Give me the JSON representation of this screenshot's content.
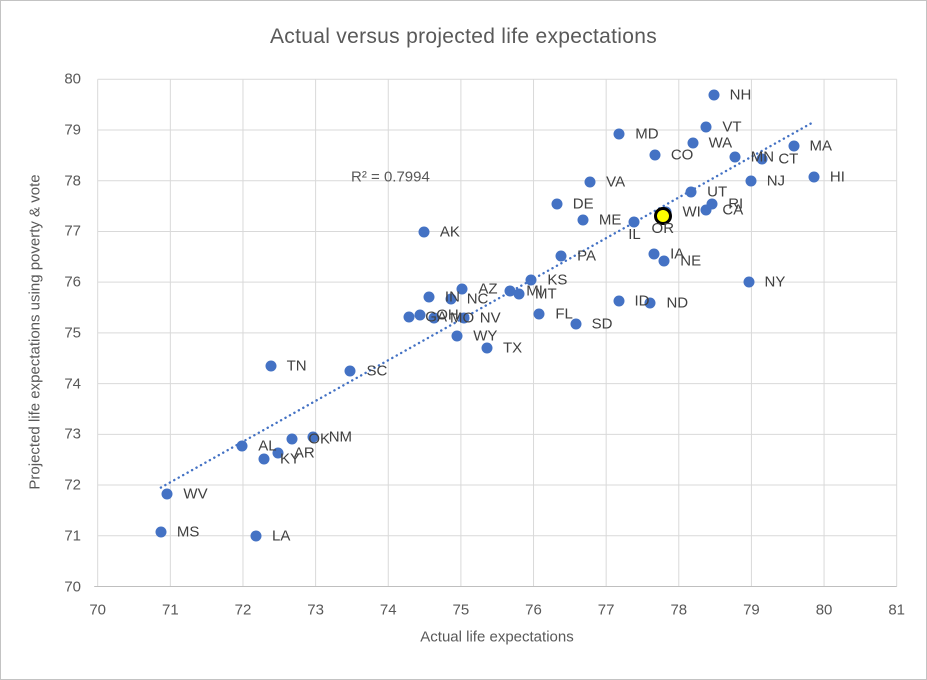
{
  "chart_data": {
    "type": "scatter",
    "title": "Actual versus projected life expectations",
    "xlabel": "Actual life expectations",
    "ylabel": "Projected life expectations using poverty & vote",
    "xlim": [
      70,
      81
    ],
    "ylim": [
      70,
      80
    ],
    "x_ticks": [
      70,
      71,
      72,
      73,
      74,
      75,
      76,
      77,
      78,
      79,
      80,
      81
    ],
    "y_ticks": [
      70,
      71,
      72,
      73,
      74,
      75,
      76,
      77,
      78,
      79,
      80
    ],
    "grid": true,
    "legend": "none",
    "colors": {
      "marker": "#4472C4",
      "highlight_fill": "#FFFF00",
      "highlight_ring": "#000000",
      "gridline": "#D9D9D9",
      "axis_line": "#BFBFBF",
      "tick_text": "#595959",
      "label_text": "#404040"
    },
    "r_squared_label": {
      "text": "R² = 0.7994",
      "x": 74.03,
      "y": 78.08
    },
    "trendline": {
      "style": "dotted",
      "color": "#4472C4",
      "x1": 70.87,
      "y1": 71.95,
      "x2": 79.82,
      "y2": 79.13
    },
    "points": [
      {
        "label": "MS",
        "x": 70.87,
        "y": 71.07
      },
      {
        "label": "WV",
        "x": 70.96,
        "y": 71.82
      },
      {
        "label": "AL",
        "x": 71.99,
        "y": 72.77
      },
      {
        "label": "LA",
        "x": 72.18,
        "y": 71.0
      },
      {
        "label": "KY",
        "x": 72.29,
        "y": 72.51
      },
      {
        "label": "TN",
        "x": 72.38,
        "y": 74.35
      },
      {
        "label": "AR",
        "x": 72.48,
        "y": 72.63
      },
      {
        "label": "OK",
        "x": 72.68,
        "y": 72.9
      },
      {
        "label": "NM",
        "x": 72.96,
        "y": 72.95
      },
      {
        "label": "SC",
        "x": 73.48,
        "y": 74.25
      },
      {
        "label": "GA",
        "x": 74.29,
        "y": 75.32
      },
      {
        "label": "OH",
        "x": 74.44,
        "y": 75.35
      },
      {
        "label": "AK",
        "x": 74.49,
        "y": 76.98
      },
      {
        "label": "IN",
        "x": 74.56,
        "y": 75.71
      },
      {
        "label": "MO",
        "x": 74.63,
        "y": 75.3
      },
      {
        "label": "NC",
        "x": 74.86,
        "y": 75.66
      },
      {
        "label": "WY",
        "x": 74.95,
        "y": 74.93
      },
      {
        "label": "AZ",
        "x": 75.02,
        "y": 75.86
      },
      {
        "label": "NV",
        "x": 75.04,
        "y": 75.29
      },
      {
        "label": "TX",
        "x": 75.36,
        "y": 74.7
      },
      {
        "label": "MI",
        "x": 75.68,
        "y": 75.83
      },
      {
        "label": "MT",
        "x": 75.8,
        "y": 75.77
      },
      {
        "label": "KS",
        "x": 75.97,
        "y": 76.05
      },
      {
        "label": "FL",
        "x": 76.08,
        "y": 75.37
      },
      {
        "label": "DE",
        "x": 76.32,
        "y": 77.54
      },
      {
        "label": "PA",
        "x": 76.38,
        "y": 76.52
      },
      {
        "label": "SD",
        "x": 76.58,
        "y": 75.17
      },
      {
        "label": "ME",
        "x": 76.68,
        "y": 77.23
      },
      {
        "label": "VA",
        "x": 76.78,
        "y": 77.98
      },
      {
        "label": "ID",
        "x": 77.17,
        "y": 75.62
      },
      {
        "label": "MD",
        "x": 77.18,
        "y": 78.92
      },
      {
        "label": "IL",
        "x": 77.39,
        "y": 77.19,
        "label_pos": "below"
      },
      {
        "label": "ND",
        "x": 77.61,
        "y": 75.59
      },
      {
        "label": "IA",
        "x": 77.66,
        "y": 76.56
      },
      {
        "label": "CO",
        "x": 77.67,
        "y": 78.51
      },
      {
        "label": "WI",
        "x": 77.83,
        "y": 77.39
      },
      {
        "label": "OR",
        "x": 77.78,
        "y": 77.31,
        "highlight": true,
        "label_pos": "below"
      },
      {
        "label": "NE",
        "x": 77.8,
        "y": 76.41
      },
      {
        "label": "UT",
        "x": 78.17,
        "y": 77.77
      },
      {
        "label": "WA",
        "x": 78.19,
        "y": 78.75
      },
      {
        "label": "CA",
        "x": 78.38,
        "y": 77.42
      },
      {
        "label": "VT",
        "x": 78.38,
        "y": 79.06
      },
      {
        "label": "RI",
        "x": 78.46,
        "y": 77.54
      },
      {
        "label": "NH",
        "x": 78.48,
        "y": 79.69
      },
      {
        "label": "MN",
        "x": 78.77,
        "y": 78.47
      },
      {
        "label": "NY",
        "x": 78.96,
        "y": 76.01
      },
      {
        "label": "NJ",
        "x": 78.99,
        "y": 78.0
      },
      {
        "label": "CT",
        "x": 79.15,
        "y": 78.42
      },
      {
        "label": "MA",
        "x": 79.58,
        "y": 78.69
      },
      {
        "label": "HI",
        "x": 79.86,
        "y": 78.07
      }
    ]
  }
}
